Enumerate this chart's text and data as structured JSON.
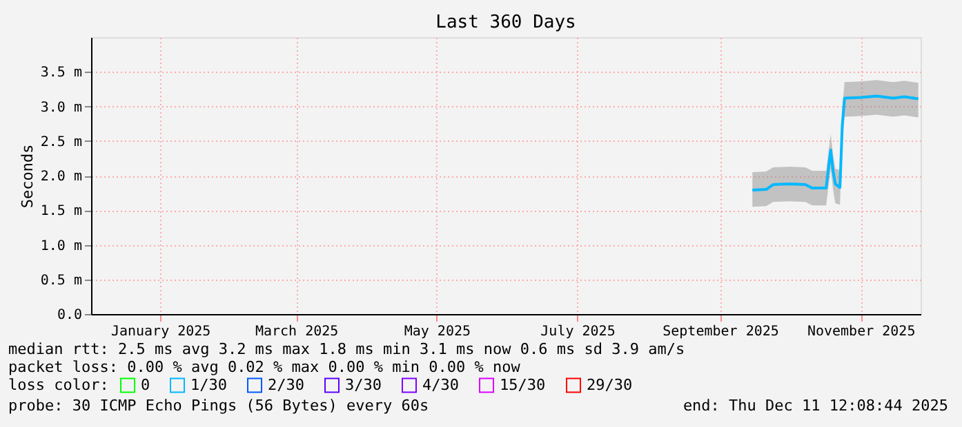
{
  "chart_data": {
    "type": "line",
    "title": "Last 360 Days",
    "ylabel": "Seconds",
    "x": [
      "2025-09-29",
      "2025-10-05",
      "2025-10-08",
      "2025-10-15",
      "2025-10-22",
      "2025-10-25",
      "2025-10-31",
      "2025-11-02",
      "2025-11-03",
      "2025-11-04",
      "2025-11-06",
      "2025-11-07",
      "2025-11-08",
      "2025-11-15",
      "2025-11-22",
      "2025-11-29",
      "2025-12-04",
      "2025-12-10"
    ],
    "xlim": [
      "2024-12-16",
      "2025-12-11"
    ],
    "xticks": [
      {
        "value": "2025-01-15",
        "label": "January 2025"
      },
      {
        "value": "2025-03-15",
        "label": "March 2025"
      },
      {
        "value": "2025-05-15",
        "label": "May 2025"
      },
      {
        "value": "2025-07-15",
        "label": "July 2025"
      },
      {
        "value": "2025-09-15",
        "label": "September 2025"
      },
      {
        "value": "2025-11-15",
        "label": "November 2025"
      }
    ],
    "ylim": [
      0,
      4.0
    ],
    "yticks": [
      {
        "value": 0,
        "label": "0.0"
      },
      {
        "value": 0.5,
        "label": "0.5 m"
      },
      {
        "value": 1.0,
        "label": "1.0 m"
      },
      {
        "value": 1.5,
        "label": "1.5 m"
      },
      {
        "value": 2.0,
        "label": "2.0 m"
      },
      {
        "value": 2.5,
        "label": "2.5 m"
      },
      {
        "value": 3.0,
        "label": "3.0 m"
      },
      {
        "value": 3.5,
        "label": "3.5 m"
      }
    ],
    "grid": true,
    "legend": "bottom",
    "legend_title": "loss color:",
    "series": [
      {
        "name": "0",
        "color": "#00ff00",
        "values": [
          null,
          null,
          null,
          null,
          null,
          null,
          null,
          null,
          null,
          null,
          null,
          null,
          null,
          null,
          null,
          null,
          null,
          null
        ]
      },
      {
        "name": "1/30",
        "color": "#00b8ff",
        "values": [
          1.79,
          1.8,
          1.87,
          1.88,
          1.87,
          1.82,
          1.82,
          2.37,
          2.07,
          1.88,
          1.83,
          2.72,
          3.12,
          3.13,
          3.15,
          3.12,
          3.14,
          3.11
        ],
        "lower": [
          1.55,
          1.56,
          1.62,
          1.63,
          1.62,
          1.57,
          1.57,
          2.1,
          1.8,
          1.6,
          1.58,
          2.5,
          2.85,
          2.86,
          2.88,
          2.85,
          2.87,
          2.84
        ],
        "upper": [
          2.05,
          2.06,
          2.12,
          2.13,
          2.12,
          2.07,
          2.07,
          2.6,
          2.3,
          2.1,
          2.08,
          2.95,
          3.35,
          3.36,
          3.38,
          3.35,
          3.37,
          3.34
        ]
      },
      {
        "name": "2/30",
        "color": "#0059ff",
        "values": [
          null,
          null,
          null,
          null,
          null,
          null,
          null,
          null,
          null,
          null,
          null,
          null,
          null,
          null,
          null,
          null,
          null,
          null
        ]
      },
      {
        "name": "3/30",
        "color": "#5e00ff",
        "values": [
          null,
          null,
          null,
          null,
          null,
          null,
          null,
          null,
          null,
          null,
          null,
          null,
          null,
          null,
          null,
          null,
          null,
          null
        ]
      },
      {
        "name": "4/30",
        "color": "#7e00ff",
        "values": [
          null,
          null,
          null,
          null,
          null,
          null,
          null,
          null,
          null,
          null,
          null,
          null,
          null,
          null,
          null,
          null,
          null,
          null
        ]
      },
      {
        "name": "15/30",
        "color": "#dd00ff",
        "values": [
          null,
          null,
          null,
          null,
          null,
          null,
          null,
          null,
          null,
          null,
          null,
          null,
          null,
          null,
          null,
          null,
          null,
          null
        ]
      },
      {
        "name": "29/30",
        "color": "#ff0000",
        "values": [
          null,
          null,
          null,
          null,
          null,
          null,
          null,
          null,
          null,
          null,
          null,
          null,
          null,
          null,
          null,
          null,
          null,
          null
        ]
      }
    ],
    "annotations": [
      "median rtt:  2.5 ms avg  3.2 ms max  1.8 ms min  3.1 ms now  0.6 ms sd  3.9   am/s",
      "packet loss: 0.00 % avg  0.02 % max  0.00 % min  0.00 % now",
      "probe:       30 ICMP Echo Pings (56 Bytes) every 60s",
      "end: Thu Dec 11 12:08:44 2025"
    ]
  }
}
